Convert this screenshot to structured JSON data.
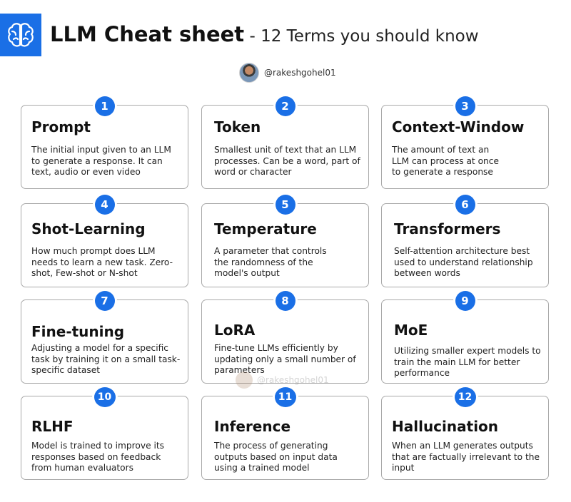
{
  "header": {
    "title_bold": "LLM Cheat sheet",
    "title_rest": " - 12 Terms you should know",
    "logo_icon": "brain-icon",
    "accent_color": "#1a6fe6"
  },
  "author": {
    "handle": "@rakeshgohel01"
  },
  "watermark": {
    "handle": "@rakeshgohel01"
  },
  "cards": [
    {
      "num": "1",
      "title": "Prompt",
      "desc": "The initial input given to an LLM to generate a response. It can text, audio or even video"
    },
    {
      "num": "2",
      "title": "Token",
      "desc": "Smallest unit of text that an LLM processes. Can be a word, part of word or character"
    },
    {
      "num": "3",
      "title": "Context-Window",
      "desc": "The amount of text an LLM can process at once to generate a response"
    },
    {
      "num": "4",
      "title": "Shot-Learning",
      "desc": "How much prompt does LLM needs to learn a new task. Zero-shot, Few-shot or N-shot"
    },
    {
      "num": "5",
      "title": "Temperature",
      "desc": "A parameter that controls the randomness of the model's output"
    },
    {
      "num": "6",
      "title": "Transformers",
      "desc": "Self-attention architecture best used to understand relationship between words"
    },
    {
      "num": "7",
      "title": "Fine-tuning",
      "desc": "Adjusting a model for a specific task by training it on a small task-specific dataset"
    },
    {
      "num": "8",
      "title": "LoRA",
      "desc": "Fine-tune LLMs efficiently by updating only a small number of parameters"
    },
    {
      "num": "9",
      "title": "MoE",
      "desc": "Utilizing smaller expert models to train the main LLM for better performance"
    },
    {
      "num": "10",
      "title": "RLHF",
      "desc": "Model is trained to improve its responses based on feedback from human evaluators"
    },
    {
      "num": "11",
      "title": "Inference",
      "desc": "The process of generating outputs based on input data using a trained model"
    },
    {
      "num": "12",
      "title": "Hallucination",
      "desc": "When an LLM generates outputs that are factually irrelevant to the input"
    }
  ]
}
